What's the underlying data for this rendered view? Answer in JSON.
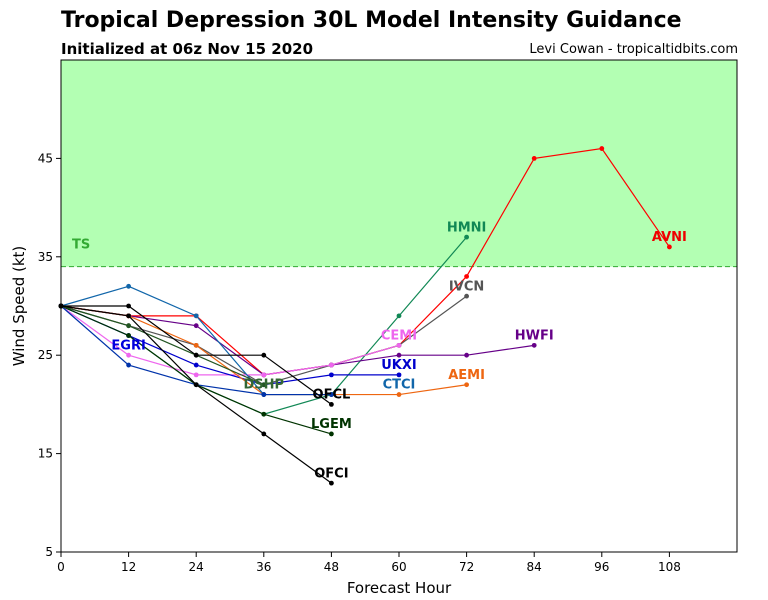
{
  "header": {
    "title": "Tropical Depression 30L Model Intensity Guidance",
    "subtitle": "Initialized at 06z Nov 15 2020",
    "credit": "Levi Cowan - tropicaltidbits.com"
  },
  "chart_data": {
    "type": "line",
    "xlabel": "Forecast Hour",
    "ylabel": "Wind Speed (kt)",
    "xlim": [
      0,
      120
    ],
    "ylim": [
      5,
      55
    ],
    "xticks": [
      0,
      12,
      24,
      36,
      48,
      60,
      72,
      84,
      96,
      108
    ],
    "yticks": [
      5,
      15,
      25,
      35,
      45
    ],
    "grid": false,
    "threshold": {
      "label": "TS",
      "value": 34,
      "color": "#33aa33",
      "fill": "#b3ffb3"
    },
    "series": [
      {
        "name": "AVNI",
        "color": "#ff0000",
        "points": [
          [
            0,
            30
          ],
          [
            12,
            29
          ],
          [
            24,
            29
          ],
          [
            36,
            23
          ],
          [
            48,
            24
          ],
          [
            60,
            26
          ],
          [
            72,
            33
          ],
          [
            84,
            45
          ],
          [
            96,
            46
          ],
          [
            108,
            36
          ]
        ]
      },
      {
        "name": "HMNI",
        "color": "#118855",
        "points": [
          [
            0,
            30
          ],
          [
            12,
            27
          ],
          [
            24,
            22
          ],
          [
            36,
            19
          ],
          [
            48,
            21
          ],
          [
            60,
            29
          ],
          [
            72,
            37
          ]
        ]
      },
      {
        "name": "IVCN",
        "color": "#555555",
        "points": [
          [
            0,
            30
          ],
          [
            12,
            28
          ],
          [
            24,
            26
          ],
          [
            36,
            22
          ],
          [
            48,
            24
          ],
          [
            60,
            26
          ],
          [
            72,
            31
          ]
        ]
      },
      {
        "name": "HWFI",
        "color": "#660088",
        "points": [
          [
            0,
            30
          ],
          [
            12,
            29
          ],
          [
            24,
            28
          ],
          [
            36,
            23
          ],
          [
            48,
            24
          ],
          [
            60,
            25
          ],
          [
            72,
            25
          ],
          [
            84,
            26
          ]
        ]
      },
      {
        "name": "CEMI",
        "color": "#ee66ee",
        "points": [
          [
            0,
            30
          ],
          [
            12,
            25
          ],
          [
            24,
            23
          ],
          [
            36,
            23
          ],
          [
            48,
            24
          ],
          [
            60,
            26
          ]
        ]
      },
      {
        "name": "UKXI",
        "color": "#0000cc",
        "points": [
          [
            0,
            30
          ],
          [
            12,
            27
          ],
          [
            24,
            24
          ],
          [
            36,
            22
          ],
          [
            48,
            23
          ],
          [
            60,
            23
          ]
        ]
      },
      {
        "name": "AEMI",
        "color": "#ee6611",
        "points": [
          [
            0,
            30
          ],
          [
            12,
            29
          ],
          [
            24,
            26
          ],
          [
            36,
            21
          ],
          [
            48,
            21
          ],
          [
            60,
            21
          ],
          [
            72,
            22
          ]
        ]
      },
      {
        "name": "CTCI",
        "color": "#1166aa",
        "points": [
          [
            0,
            30
          ],
          [
            12,
            32
          ],
          [
            24,
            29
          ],
          [
            36,
            21
          ],
          [
            48,
            21
          ]
        ]
      },
      {
        "name": "EGRI",
        "color": "#0033aa",
        "points": [
          [
            0,
            30
          ],
          [
            12,
            24
          ],
          [
            24,
            22
          ],
          [
            36,
            21
          ],
          [
            48,
            21
          ]
        ]
      },
      {
        "name": "LGEM",
        "color": "#003300",
        "points": [
          [
            0,
            30
          ],
          [
            12,
            27
          ],
          [
            24,
            22
          ],
          [
            36,
            19
          ],
          [
            48,
            17
          ]
        ]
      },
      {
        "name": "DSHP",
        "color": "#225522",
        "points": [
          [
            0,
            30
          ],
          [
            12,
            28
          ],
          [
            24,
            25
          ],
          [
            36,
            22
          ]
        ]
      },
      {
        "name": "OFCL",
        "color": "#000000",
        "points": [
          [
            0,
            30
          ],
          [
            12,
            30
          ],
          [
            24,
            25
          ],
          [
            36,
            25
          ],
          [
            48,
            20
          ]
        ]
      },
      {
        "name": "OFCI",
        "color": "#000000",
        "points": [
          [
            0,
            30
          ],
          [
            12,
            29
          ],
          [
            24,
            22
          ],
          [
            36,
            17
          ],
          [
            48,
            12
          ]
        ]
      }
    ],
    "labels": [
      {
        "text": "AVNI",
        "color": "#ee0000",
        "x": 108,
        "y": 37
      },
      {
        "text": "HMNI",
        "color": "#118855",
        "x": 72,
        "y": 38
      },
      {
        "text": "IVCN",
        "color": "#555555",
        "x": 72,
        "y": 32
      },
      {
        "text": "HWFI",
        "color": "#660088",
        "x": 84,
        "y": 27
      },
      {
        "text": "CEMI",
        "color": "#ee66ee",
        "x": 60,
        "y": 27
      },
      {
        "text": "UKXI",
        "color": "#0000cc",
        "x": 60,
        "y": 24
      },
      {
        "text": "AEMI",
        "color": "#ee6611",
        "x": 72,
        "y": 23
      },
      {
        "text": "CTCI",
        "color": "#1166aa",
        "x": 60,
        "y": 22
      },
      {
        "text": "EGRI",
        "color": "#0000dd",
        "x": 12,
        "y": 26
      },
      {
        "text": "DSHP",
        "color": "#336633",
        "x": 36,
        "y": 22
      },
      {
        "text": "LGEM",
        "color": "#003300",
        "x": 48,
        "y": 18
      },
      {
        "text": "OFCL",
        "color": "#000000",
        "x": 48,
        "y": 21
      },
      {
        "text": "OFCI",
        "color": "#000000",
        "x": 48,
        "y": 13
      }
    ]
  }
}
